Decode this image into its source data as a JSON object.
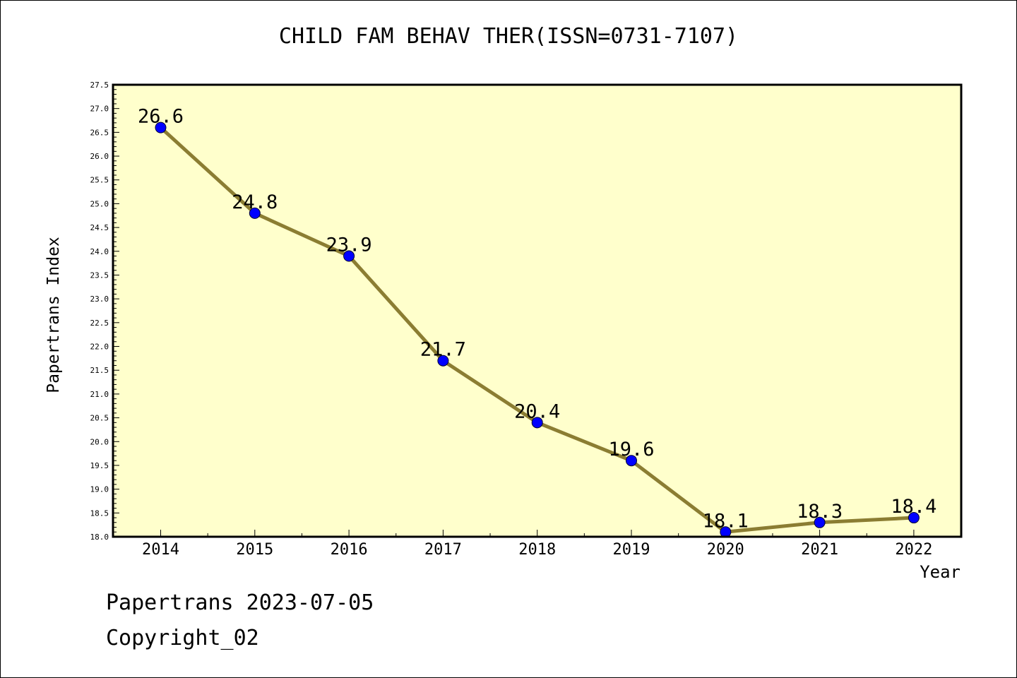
{
  "colors": {
    "plot_background": "#ffffcc",
    "line": "#8b7d32",
    "marker": "#0000ff",
    "axis": "#000000"
  },
  "chart_data": {
    "type": "line",
    "title": "CHILD FAM BEHAV THER(ISSN=0731-7107)",
    "xlabel": "Year",
    "ylabel": "Papertrans Index",
    "categories": [
      "2014",
      "2015",
      "2016",
      "2017",
      "2018",
      "2019",
      "2020",
      "2021",
      "2022"
    ],
    "series": [
      {
        "values": [
          26.6,
          24.8,
          23.9,
          21.7,
          20.4,
          19.6,
          18.1,
          18.3,
          18.4
        ],
        "data_labels": [
          "26.6",
          "24.8",
          "23.9",
          "21.7",
          "20.4",
          "19.6",
          "18.1",
          "18.3",
          "18.4"
        ]
      }
    ],
    "ylim": [
      18.0,
      27.5
    ],
    "y_ticks": [
      "18.0",
      "18.5",
      "19.0",
      "19.5",
      "20.0",
      "20.5",
      "21.0",
      "21.5",
      "22.0",
      "22.5",
      "23.0",
      "23.5",
      "24.0",
      "24.5",
      "25.0",
      "25.5",
      "26.0",
      "26.5",
      "27.0",
      "27.5"
    ],
    "grid": false,
    "legend": "none"
  },
  "footer": {
    "line1": "Papertrans 2023-07-05",
    "line2": "Copyright_02"
  }
}
